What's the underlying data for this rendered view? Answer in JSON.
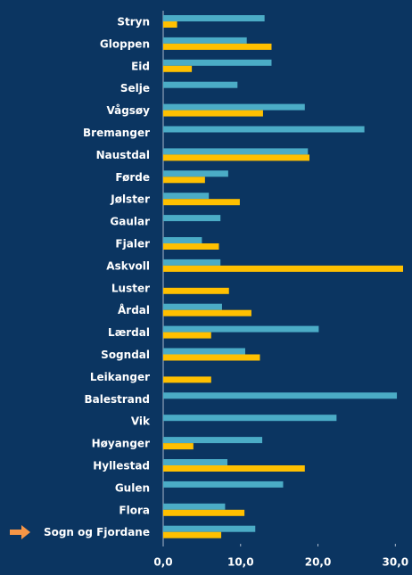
{
  "chart_data": {
    "type": "bar",
    "orientation": "horizontal",
    "categories": [
      "Stryn",
      "Gloppen",
      "Eid",
      "Selje",
      "Vågsøy",
      "Bremanger",
      "Naustdal",
      "Førde",
      "Jølster",
      "Gaular",
      "Fjaler",
      "Askvoll",
      "Luster",
      "Årdal",
      "Lærdal",
      "Sogndal",
      "Leikanger",
      "Balestrand",
      "Vik",
      "Høyanger",
      "Hyllestad",
      "Gulen",
      "Flora",
      "Sogn og Fjordane"
    ],
    "series": [
      {
        "color": "#4bacc6",
        "values": [
          13.1,
          10.8,
          14.0,
          9.6,
          18.3,
          26.0,
          18.7,
          8.4,
          5.9,
          7.4,
          5.0,
          7.4,
          null,
          7.6,
          20.1,
          10.6,
          null,
          30.2,
          22.4,
          12.8,
          8.3,
          15.5,
          8.0,
          11.9
        ]
      },
      {
        "color": "#ffc000",
        "values": [
          1.8,
          14.0,
          3.7,
          null,
          12.9,
          null,
          18.9,
          5.4,
          9.9,
          null,
          7.2,
          31.0,
          8.5,
          11.4,
          6.2,
          12.5,
          6.2,
          null,
          null,
          3.9,
          18.3,
          null,
          10.5,
          7.5
        ]
      }
    ],
    "xlim": [
      0,
      31
    ],
    "xticks": [
      {
        "value": 0,
        "label": "0,0"
      },
      {
        "value": 10,
        "label": "10,0"
      },
      {
        "value": 20,
        "label": "20,0"
      },
      {
        "value": 30,
        "label": "30,0"
      }
    ],
    "grid": false
  }
}
